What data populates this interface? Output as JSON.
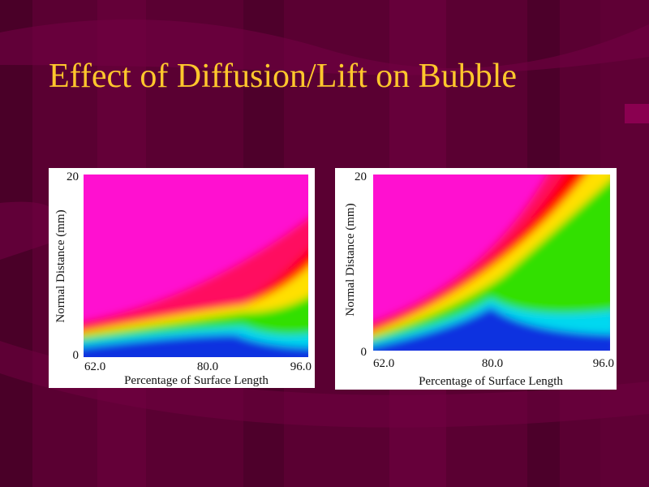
{
  "title": "Effect of Diffusion/Lift on Bubble",
  "panels": [
    {
      "y_label": "Normal Distance (mm)",
      "y_ticks": [
        "20",
        "0"
      ],
      "x_ticks": [
        "62.0",
        "80.0",
        "96.0"
      ],
      "x_label": "Percentage of Surface Length"
    },
    {
      "y_label": "Normal Distance (mm)",
      "y_ticks": [
        "20",
        "0"
      ],
      "x_ticks": [
        "62.0",
        "80.0",
        "96.0"
      ],
      "x_label": "Percentage of Surface Length"
    }
  ]
}
